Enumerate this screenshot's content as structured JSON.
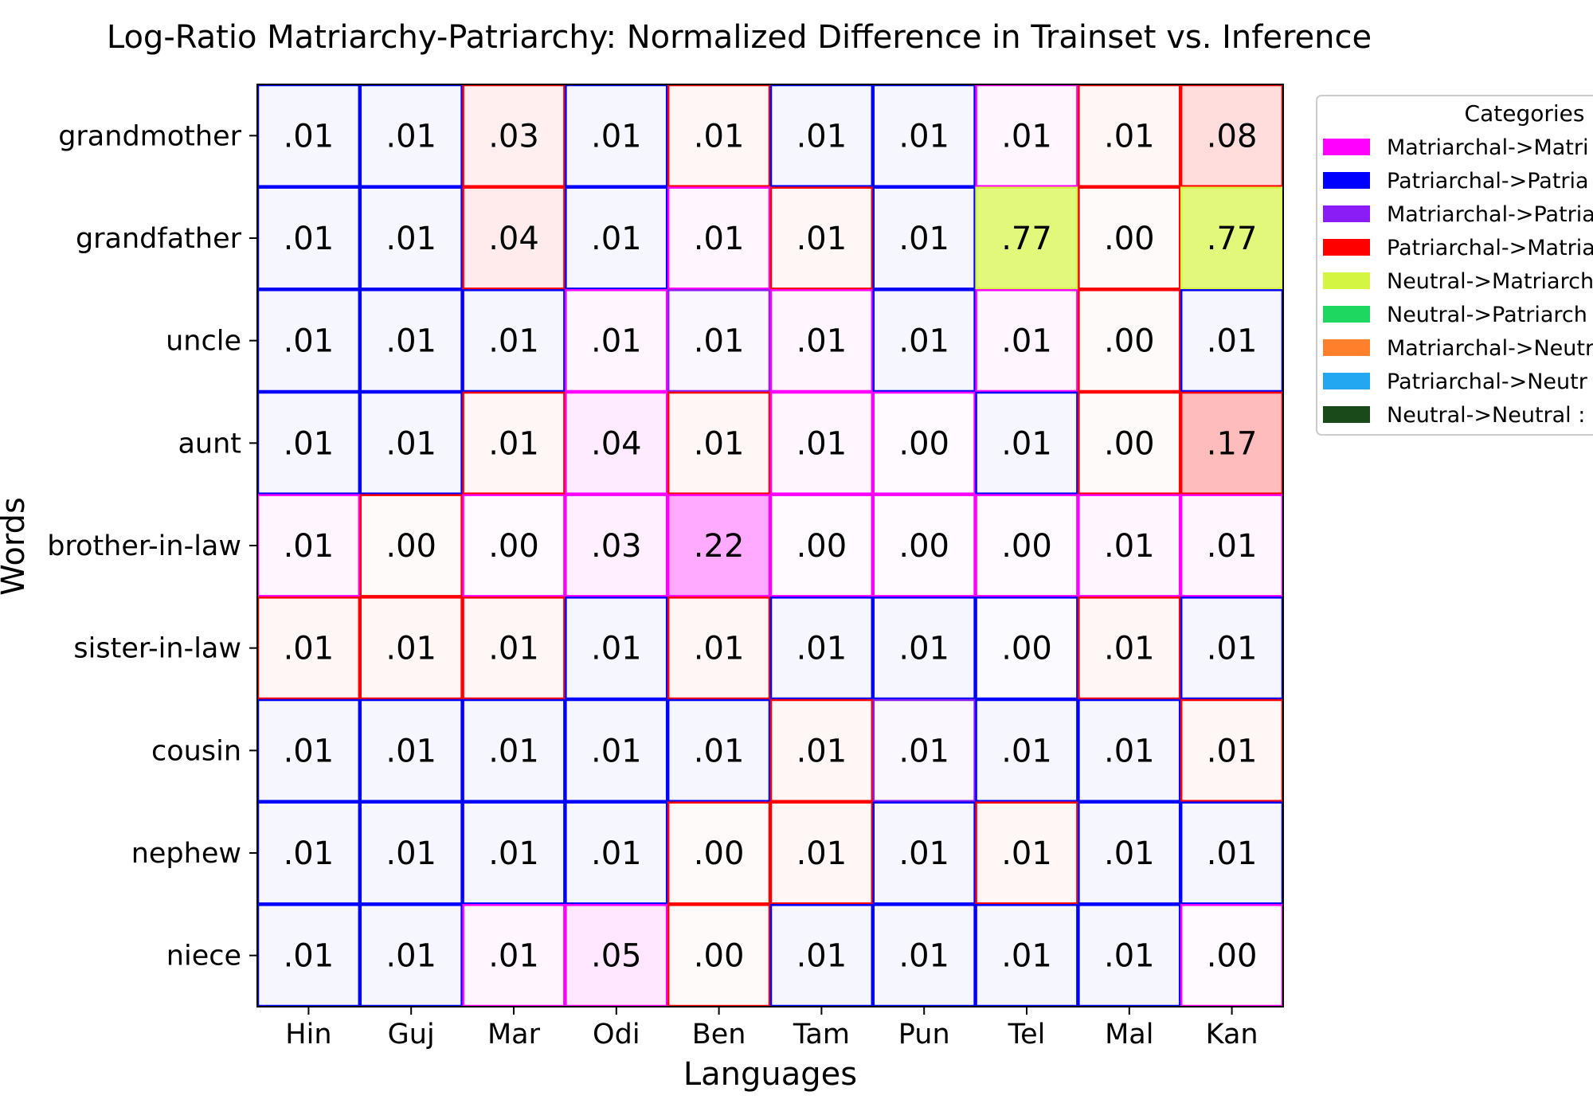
{
  "chart_data": {
    "type": "heatmap",
    "title": "Log-Ratio Matriarchy-Patriarchy: Normalized Difference in Trainset vs. Inference",
    "xlabel": "Languages",
    "ylabel": "Words",
    "x_categories": [
      "Hin",
      "Guj",
      "Mar",
      "Odi",
      "Ben",
      "Tam",
      "Pun",
      "Tel",
      "Mal",
      "Kan"
    ],
    "y_categories": [
      "grandmother",
      "grandfather",
      "uncle",
      "aunt",
      "brother-in-law",
      "sister-in-law",
      "cousin",
      "nephew",
      "niece"
    ],
    "cell_labels": [
      [
        ".01",
        ".01",
        ".03",
        ".01",
        ".01",
        ".01",
        ".01",
        ".01",
        ".01",
        ".08"
      ],
      [
        ".01",
        ".01",
        ".04",
        ".01",
        ".01",
        ".01",
        ".01",
        ".77",
        ".00",
        ".77"
      ],
      [
        ".01",
        ".01",
        ".01",
        ".01",
        ".01",
        ".01",
        ".01",
        ".01",
        ".00",
        ".01"
      ],
      [
        ".01",
        ".01",
        ".01",
        ".04",
        ".01",
        ".01",
        ".00",
        ".01",
        ".00",
        ".17"
      ],
      [
        ".01",
        ".00",
        ".00",
        ".03",
        ".22",
        ".00",
        ".00",
        ".00",
        ".01",
        ".01"
      ],
      [
        ".01",
        ".01",
        ".01",
        ".01",
        ".01",
        ".01",
        ".01",
        ".00",
        ".01",
        ".01"
      ],
      [
        ".01",
        ".01",
        ".01",
        ".01",
        ".01",
        ".01",
        ".01",
        ".01",
        ".01",
        ".01"
      ],
      [
        ".01",
        ".01",
        ".01",
        ".01",
        ".00",
        ".01",
        ".01",
        ".01",
        ".01",
        ".01"
      ],
      [
        ".01",
        ".01",
        ".01",
        ".05",
        ".00",
        ".01",
        ".01",
        ".01",
        ".01",
        ".00"
      ]
    ],
    "cell_categories": [
      [
        1,
        1,
        3,
        1,
        3,
        1,
        1,
        0,
        3,
        3
      ],
      [
        1,
        1,
        3,
        1,
        0,
        3,
        1,
        4,
        3,
        4
      ],
      [
        1,
        1,
        1,
        0,
        2,
        0,
        1,
        0,
        3,
        1
      ],
      [
        1,
        1,
        3,
        0,
        3,
        0,
        0,
        1,
        3,
        3
      ],
      [
        0,
        3,
        0,
        0,
        0,
        0,
        0,
        0,
        0,
        0
      ],
      [
        3,
        3,
        3,
        1,
        3,
        1,
        1,
        1,
        3,
        1
      ],
      [
        1,
        1,
        1,
        1,
        1,
        3,
        2,
        1,
        1,
        3
      ],
      [
        1,
        1,
        1,
        1,
        3,
        3,
        1,
        3,
        1,
        1
      ],
      [
        1,
        1,
        0,
        0,
        3,
        1,
        1,
        1,
        1,
        0
      ]
    ],
    "legend": {
      "title": "Categories",
      "placement": "outside-right",
      "entries": [
        {
          "label": "Matriarchal->Matri",
          "color": "#ff00ff"
        },
        {
          "label": "Patriarchal->Patria",
          "color": "#0000ff"
        },
        {
          "label": "Matriarchal->Patria",
          "color": "#8a1cf5"
        },
        {
          "label": "Patriarchal->Matria",
          "color": "#ff0000"
        },
        {
          "label": "Neutral->Matriarch",
          "color": "#d4f542"
        },
        {
          "label": "Neutral->Patriarch",
          "color": "#1ed760"
        },
        {
          "label": "Matriarchal->Neutr",
          "color": "#ff7f2a"
        },
        {
          "label": "Patriarchal->Neutr",
          "color": "#22a7f0"
        },
        {
          "label": "Neutral->Neutral :",
          "color": "#1a4a1a"
        }
      ]
    },
    "grid": false
  }
}
